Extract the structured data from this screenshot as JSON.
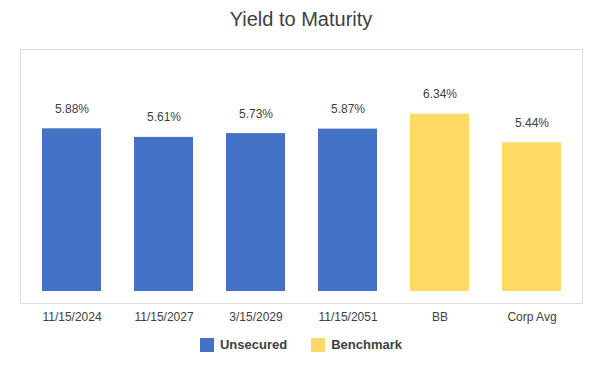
{
  "chart_data": {
    "type": "bar",
    "title": "Yield to Maturity",
    "categories": [
      "11/15/2024",
      "11/15/2027",
      "3/15/2029",
      "11/15/2051",
      "BB",
      "Corp Avg"
    ],
    "series": [
      {
        "name": "Unsecured",
        "color": "#4472C4",
        "values": [
          5.88,
          5.61,
          5.73,
          5.87,
          null,
          null
        ],
        "value_labels": [
          "5.88%",
          "5.61%",
          "5.73%",
          "5.87%",
          null,
          null
        ]
      },
      {
        "name": "Benchmark",
        "color": "#FFD966",
        "values": [
          null,
          null,
          null,
          null,
          6.34,
          5.44
        ],
        "value_labels": [
          null,
          null,
          null,
          null,
          "6.34%",
          "5.44%"
        ]
      }
    ],
    "ylim": [
      0,
      8.0
    ],
    "grid": false,
    "legend": "bottom",
    "data_labels": true,
    "tick_labels": "x"
  }
}
